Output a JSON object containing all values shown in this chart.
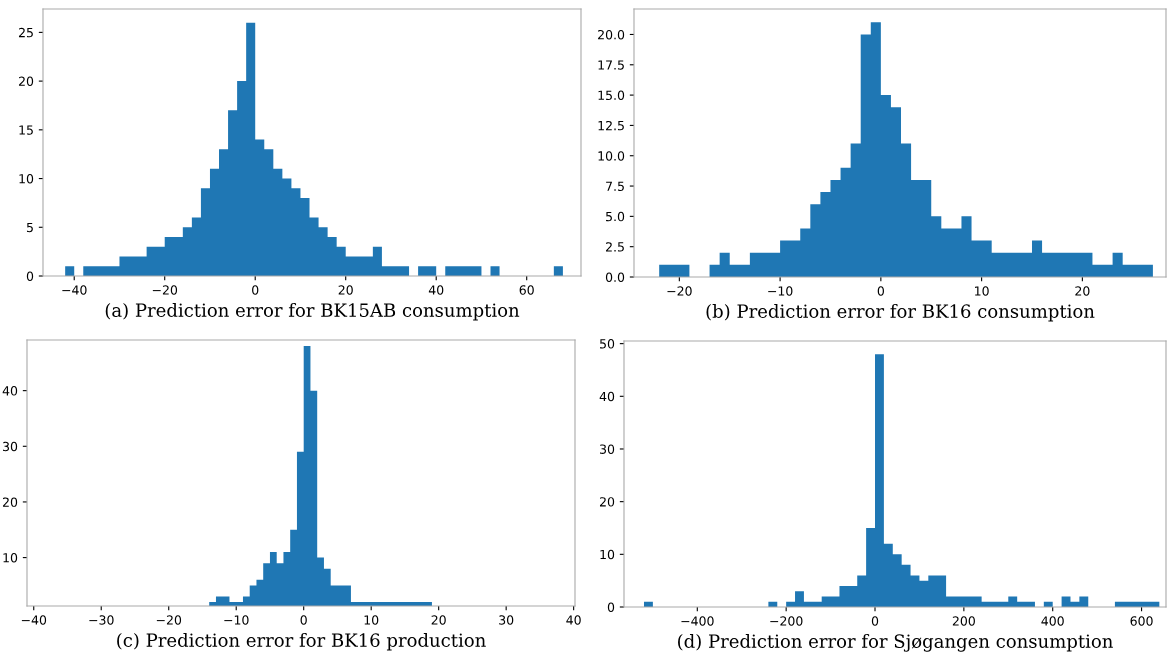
{
  "chart_data": [
    {
      "type": "histogram",
      "title": "(a) Prediction error for BK15AB consumption",
      "color": "#1f77b4",
      "bins": [
        -42,
        -40,
        -38,
        -36,
        -34,
        -32,
        -30,
        -28,
        -26,
        -24,
        -22,
        -20,
        -18,
        -16,
        -14,
        -12,
        -10,
        -8,
        -6,
        -4,
        -2,
        0,
        2,
        4,
        6,
        8,
        10,
        12,
        14,
        16,
        18,
        20,
        22,
        24,
        26,
        28,
        30,
        32,
        34,
        36,
        38,
        40,
        42,
        44,
        46,
        48,
        50,
        52,
        54,
        56,
        58,
        60,
        62,
        64,
        66,
        68
      ],
      "values": [
        1,
        0,
        1,
        1,
        1,
        1,
        2,
        2,
        2,
        3,
        3,
        4,
        4,
        5,
        6,
        9,
        11,
        13,
        17,
        20,
        26,
        14,
        13,
        11,
        10,
        9,
        8,
        6,
        5,
        4,
        3,
        2,
        2,
        2,
        3,
        1,
        1,
        1,
        0,
        1,
        1,
        0,
        1,
        1,
        1,
        1,
        0,
        1,
        0,
        0,
        0,
        0,
        0,
        0,
        1
      ],
      "xlim": [
        -46.9,
        72
      ],
      "ylim": [
        0,
        27.4
      ],
      "xticks": [
        -40,
        -20,
        0,
        20,
        40,
        60
      ],
      "yticks": [
        0,
        5,
        10,
        15,
        20,
        25
      ],
      "grid": false
    },
    {
      "type": "histogram",
      "title": "(b) Prediction error for BK16 consumption",
      "color": "#1f77b4",
      "bins": [
        -22,
        -21,
        -20,
        -19,
        -18,
        -17,
        -16,
        -15,
        -14,
        -13,
        -12,
        -11,
        -10,
        -9,
        -8,
        -7,
        -6,
        -5,
        -4,
        -3,
        -2,
        -1,
        0,
        1,
        2,
        3,
        4,
        5,
        6,
        7,
        8,
        9,
        10,
        11,
        12,
        13,
        14,
        15,
        16,
        17,
        18,
        19,
        20,
        21,
        22,
        23,
        24,
        25,
        26,
        27
      ],
      "values": [
        1,
        1,
        1,
        0,
        0,
        1,
        2,
        1,
        1,
        2,
        2,
        2,
        3,
        3,
        4,
        6,
        7,
        8,
        9,
        11,
        20,
        21,
        15,
        14,
        11,
        8,
        8,
        5,
        4,
        4,
        5,
        3,
        3,
        2,
        2,
        2,
        2,
        3,
        2,
        2,
        2,
        2,
        2,
        1,
        1,
        2,
        1,
        1,
        1
      ],
      "xlim": [
        -24.5,
        28.3
      ],
      "ylim": [
        0,
        22.1
      ],
      "xticks": [
        -20,
        -10,
        0,
        10,
        20
      ],
      "yticks": [
        {
          "value": 0,
          "label": "0.0"
        },
        {
          "value": 2.5,
          "label": "2.5"
        },
        {
          "value": 5,
          "label": "5.0"
        },
        {
          "value": 7.5,
          "label": "7.5"
        },
        {
          "value": 10,
          "label": "10.0"
        },
        {
          "value": 12.5,
          "label": "12.5"
        },
        {
          "value": 15,
          "label": "15.0"
        },
        {
          "value": 17.5,
          "label": "17.5"
        },
        {
          "value": 20,
          "label": "20.0"
        }
      ],
      "grid": false
    },
    {
      "type": "histogram",
      "title": "(c) Prediction error for BK16 production",
      "color": "#1f77b4",
      "bins": [
        -14,
        -13,
        -12,
        -11,
        -10,
        -9,
        -8,
        -7,
        -6,
        -5,
        -4,
        -3,
        -2,
        -1,
        0,
        1,
        2,
        3,
        4,
        5,
        6,
        7,
        8,
        9,
        10,
        11,
        12,
        13,
        14,
        15,
        16,
        17,
        18,
        19
      ],
      "values": [
        2,
        3,
        3,
        2,
        2,
        3,
        5,
        6,
        9,
        11,
        9,
        11,
        15,
        29,
        48,
        40,
        10,
        8,
        5,
        5,
        5,
        2,
        2,
        2,
        2,
        2,
        2,
        2,
        2,
        2,
        2,
        2,
        2
      ],
      "xlim": [
        -41,
        40.2
      ],
      "ylim": [
        1.3,
        49.1
      ],
      "xticks": [
        -40,
        -30,
        -20,
        -10,
        0,
        10,
        20,
        30,
        40
      ],
      "yticks": [
        10,
        20,
        30,
        40
      ],
      "grid": false
    },
    {
      "type": "histogram",
      "title": "(d) Prediction error for Sjøgangen consumption",
      "color": "#1f77b4",
      "bins": [
        -520,
        -500,
        -480,
        -460,
        -440,
        -420,
        -400,
        -380,
        -360,
        -340,
        -320,
        -300,
        -280,
        -260,
        -240,
        -220,
        -200,
        -180,
        -160,
        -140,
        -120,
        -100,
        -80,
        -60,
        -40,
        -20,
        0,
        20,
        40,
        60,
        80,
        100,
        120,
        140,
        160,
        180,
        200,
        220,
        240,
        260,
        280,
        300,
        320,
        340,
        360,
        380,
        400,
        420,
        440,
        460,
        480,
        500,
        520,
        540,
        560,
        580,
        600,
        620,
        640
      ],
      "values": [
        1,
        0,
        0,
        0,
        0,
        0,
        0,
        0,
        0,
        0,
        0,
        0,
        0,
        0,
        1,
        0,
        1,
        3,
        1,
        1,
        2,
        2,
        4,
        4,
        6,
        15,
        48,
        12,
        10,
        8,
        6,
        5,
        6,
        6,
        2,
        2,
        2,
        2,
        1,
        1,
        1,
        2,
        1,
        1,
        0,
        1,
        0,
        2,
        1,
        2,
        0,
        0,
        0,
        1,
        1,
        1,
        1,
        1
      ],
      "xlim": [
        -565,
        655
      ],
      "ylim": [
        0,
        50.5
      ],
      "xticks": [
        -400,
        -200,
        0,
        200,
        400,
        600
      ],
      "yticks": [
        0,
        10,
        20,
        30,
        40,
        50
      ],
      "grid": false
    }
  ]
}
